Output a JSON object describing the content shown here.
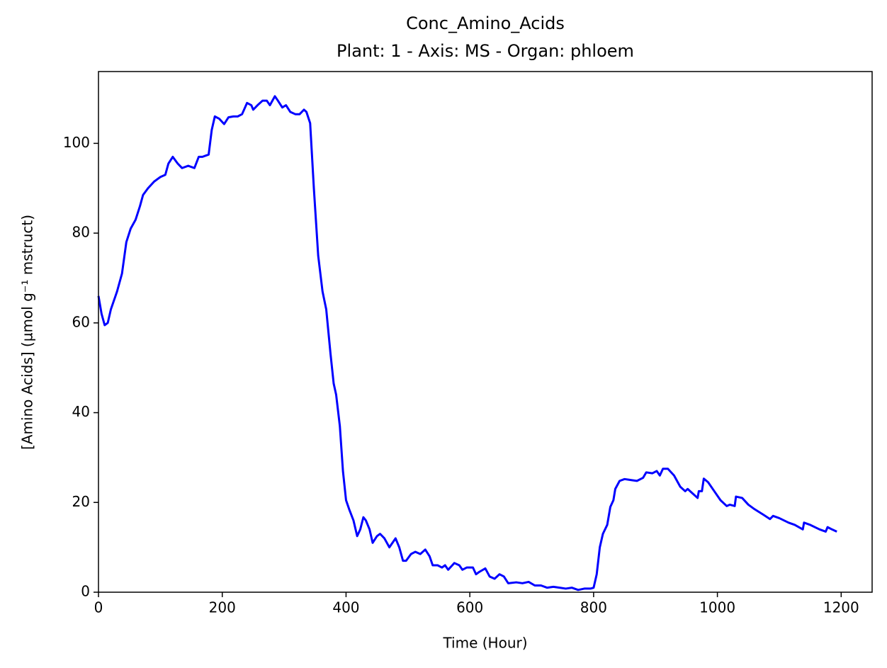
{
  "chart_data": {
    "type": "line",
    "title": "Conc_Amino_Acids",
    "subtitle": "Plant: 1 - Axis: MS - Organ: phloem",
    "x_label": "Time (Hour)",
    "y_label": "[Amino Acids] (µmol g⁻¹ mstruct)",
    "xlim": [
      0,
      1250
    ],
    "ylim": [
      0,
      116
    ],
    "xticks": [
      0,
      200,
      400,
      600,
      800,
      1000,
      1200
    ],
    "yticks": [
      0,
      20,
      40,
      60,
      80,
      100
    ],
    "x": [
      0,
      5,
      10,
      15,
      20,
      30,
      38,
      45,
      52,
      60,
      67,
      72,
      80,
      90,
      100,
      108,
      113,
      120,
      128,
      135,
      145,
      155,
      162,
      168,
      178,
      183,
      188,
      195,
      203,
      210,
      218,
      225,
      232,
      240,
      247,
      250,
      257,
      265,
      272,
      277,
      285,
      290,
      297,
      303,
      310,
      318,
      325,
      332,
      336,
      342,
      348,
      355,
      362,
      368,
      375,
      380,
      384,
      390,
      395,
      400,
      405,
      412,
      418,
      423,
      428,
      432,
      438,
      443,
      450,
      455,
      462,
      470,
      480,
      486,
      492,
      497,
      505,
      512,
      520,
      528,
      535,
      540,
      548,
      555,
      560,
      565,
      575,
      583,
      588,
      595,
      605,
      610,
      615,
      625,
      632,
      640,
      648,
      655,
      662,
      675,
      685,
      695,
      705,
      715,
      725,
      735,
      745,
      755,
      765,
      775,
      785,
      795,
      800,
      805,
      810,
      815,
      822,
      827,
      832,
      835,
      842,
      850,
      860,
      870,
      880,
      885,
      895,
      902,
      907,
      912,
      920,
      930,
      940,
      948,
      952,
      960,
      968,
      970,
      975,
      978,
      985,
      995,
      1005,
      1015,
      1020,
      1028,
      1030,
      1040,
      1050,
      1060,
      1075,
      1085,
      1090,
      1100,
      1115,
      1125,
      1138,
      1140,
      1150,
      1165,
      1175,
      1178,
      1185,
      1193
    ],
    "series": [
      {
        "name": "Conc_Amino_Acids",
        "color": "#0000ff",
        "values": [
          66,
          62,
          59.5,
          60,
          63,
          67,
          71,
          78,
          81,
          83,
          86,
          88.5,
          90,
          91.5,
          92.5,
          93,
          95.5,
          97,
          95.5,
          94.5,
          95,
          94.5,
          97,
          97,
          97.5,
          103,
          106,
          105.5,
          104.3,
          105.8,
          106,
          106,
          106.5,
          109,
          108.5,
          107.5,
          108.5,
          109.5,
          109.5,
          108.5,
          110.5,
          109.5,
          108,
          108.5,
          107,
          106.5,
          106.5,
          107.5,
          107,
          104.5,
          90,
          75,
          67,
          63,
          53,
          46.5,
          44,
          37,
          27,
          20.5,
          18.5,
          16,
          12.5,
          14,
          16.7,
          16,
          14,
          11,
          12.5,
          13,
          12,
          10,
          12,
          10,
          7,
          7,
          8.5,
          9,
          8.5,
          9.5,
          8,
          6,
          6,
          5.5,
          6,
          5,
          6.5,
          6,
          5,
          5.5,
          5.5,
          4,
          4.5,
          5.3,
          3.5,
          3,
          4,
          3.5,
          2,
          2.2,
          2,
          2.3,
          1.5,
          1.5,
          1,
          1.2,
          1,
          0.8,
          1,
          0.5,
          0.8,
          0.8,
          1,
          4,
          10,
          13,
          15,
          19,
          20.5,
          23,
          24.8,
          25.2,
          25,
          24.8,
          25.5,
          26.7,
          26.5,
          27,
          26,
          27.5,
          27.5,
          26,
          23.5,
          22.5,
          23,
          22,
          21,
          22.5,
          22.5,
          25.3,
          24.5,
          22.5,
          20.5,
          19.2,
          19.5,
          19.2,
          21.3,
          21,
          19.5,
          18.5,
          17.2,
          16.3,
          17,
          16.5,
          15.5,
          15,
          14,
          15.5,
          15,
          14,
          13.5,
          14.5,
          14,
          13.5
        ]
      }
    ]
  }
}
